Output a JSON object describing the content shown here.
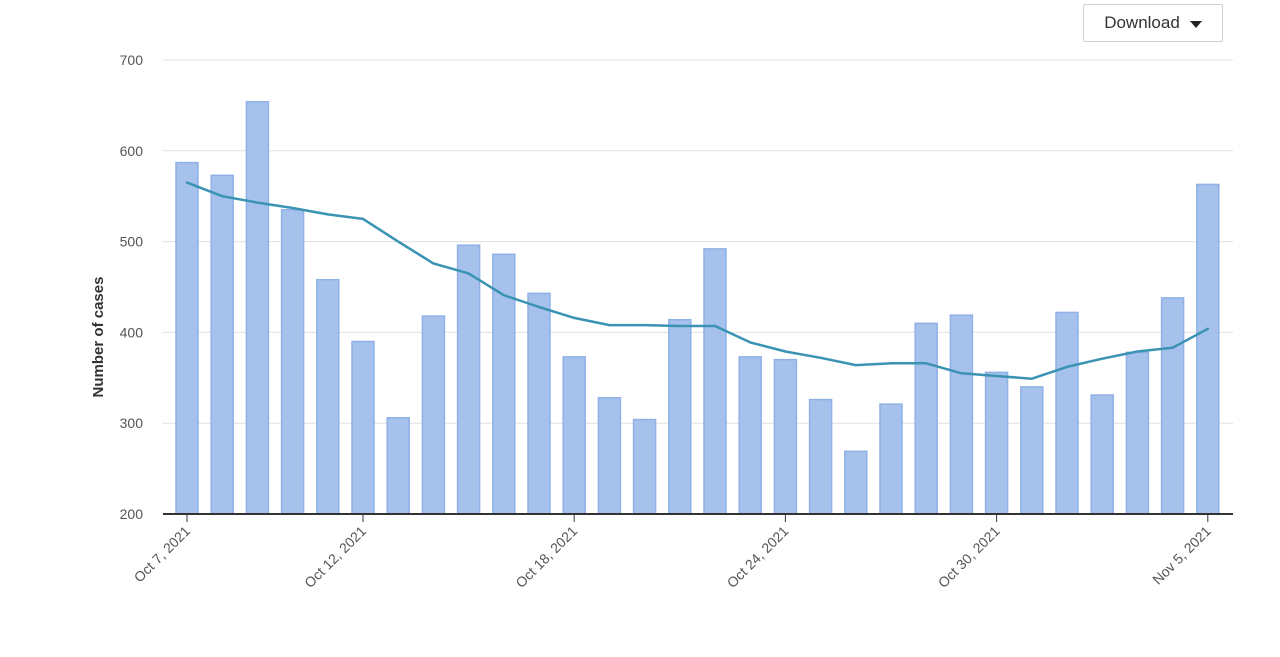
{
  "toolbar": {
    "download_label": "Download",
    "caret_icon": "caret-down-icon"
  },
  "colors": {
    "bar_fill": "#a6c1eb",
    "bar_stroke": "#8fb1e6",
    "line": "#3a93b3",
    "grid": "#e0e0e0",
    "axis": "#333333"
  },
  "chart_data": {
    "type": "bar",
    "title": "",
    "xlabel": "",
    "ylabel": "Number of cases",
    "ylim": [
      200,
      700
    ],
    "yticks": [
      200,
      300,
      400,
      500,
      600,
      700
    ],
    "grid": true,
    "x": [
      "Oct 7, 2021",
      "Oct 8, 2021",
      "Oct 9, 2021",
      "Oct 10, 2021",
      "Oct 11, 2021",
      "Oct 12, 2021",
      "Oct 13, 2021",
      "Oct 14, 2021",
      "Oct 15, 2021",
      "Oct 16, 2021",
      "Oct 17, 2021",
      "Oct 18, 2021",
      "Oct 19, 2021",
      "Oct 20, 2021",
      "Oct 21, 2021",
      "Oct 22, 2021",
      "Oct 23, 2021",
      "Oct 24, 2021",
      "Oct 25, 2021",
      "Oct 26, 2021",
      "Oct 27, 2021",
      "Oct 28, 2021",
      "Oct 29, 2021",
      "Oct 30, 2021",
      "Oct 31, 2021",
      "Nov 1, 2021",
      "Nov 2, 2021",
      "Nov 3, 2021",
      "Nov 4, 2021",
      "Nov 5, 2021"
    ],
    "xtick_labels": [
      "Oct 7, 2021",
      "Oct 12, 2021",
      "Oct 18, 2021",
      "Oct 24, 2021",
      "Oct 30, 2021",
      "Nov 5, 2021"
    ],
    "series": [
      {
        "type": "bar",
        "values": [
          587,
          573,
          654,
          535,
          458,
          390,
          306,
          418,
          496,
          486,
          443,
          373,
          328,
          304,
          414,
          492,
          373,
          370,
          326,
          269,
          321,
          410,
          419,
          356,
          340,
          422,
          331,
          378,
          438,
          563
        ]
      },
      {
        "type": "line",
        "values": [
          565,
          550,
          543,
          537,
          530,
          525,
          500,
          476,
          465,
          441,
          428,
          416,
          408,
          408,
          407,
          407,
          389,
          379,
          372,
          364,
          366,
          366,
          355,
          352,
          349,
          362,
          371,
          379,
          383,
          404
        ]
      }
    ]
  }
}
